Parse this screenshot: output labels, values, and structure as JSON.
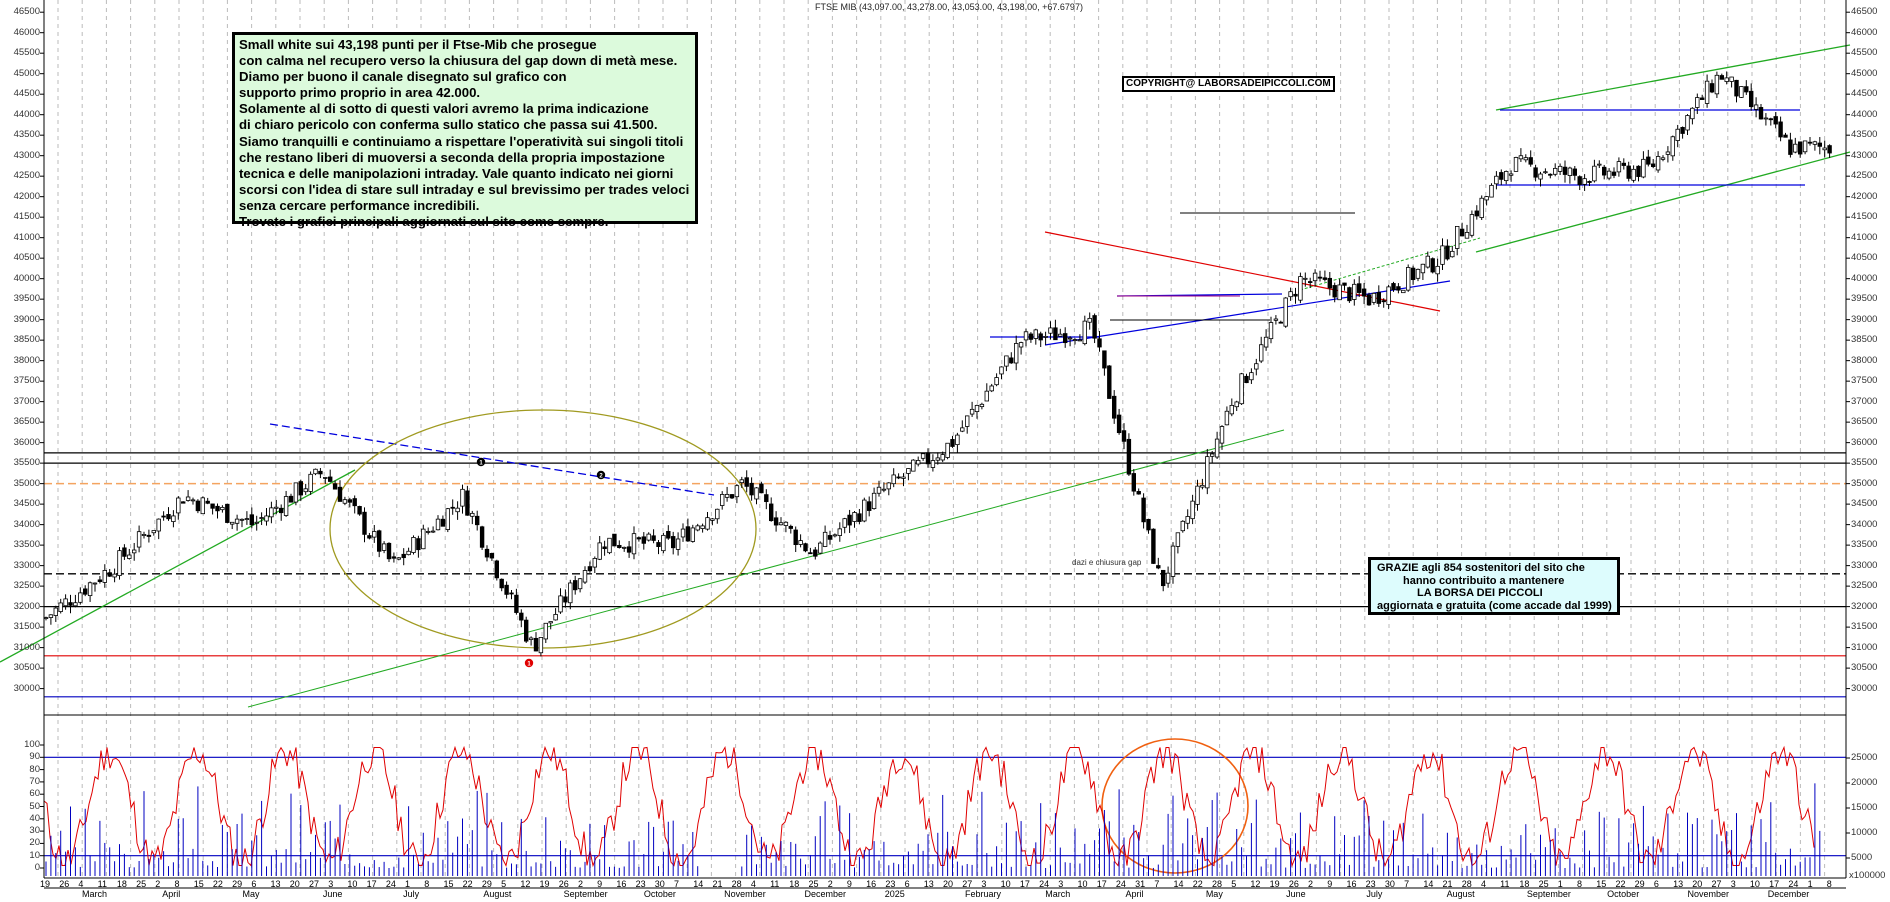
{
  "chart_data": {
    "type": "candlestick",
    "title": "FTSE MIB (43,097.00, 43,278.00, 43,053.00, 43,198.00, +67.6797)",
    "symbol": "FTSE MIB",
    "ohlc_last": {
      "open": 43097.0,
      "high": 43278.0,
      "low": 43053.0,
      "close": 43198.0,
      "change": 67.6797
    },
    "price_axis": {
      "ticks": [
        30000,
        30500,
        31000,
        31500,
        32000,
        32500,
        33000,
        33500,
        34000,
        34500,
        35000,
        35500,
        36000,
        36500,
        37000,
        37500,
        38000,
        38500,
        39000,
        39500,
        40000,
        40500,
        41000,
        41500,
        42000,
        42500,
        43000,
        43500,
        44000,
        44500,
        45000,
        45500,
        46000,
        46500
      ],
      "range": [
        29600,
        46700
      ]
    },
    "oscillator_axis": {
      "ticks": [
        0,
        10,
        20,
        30,
        40,
        50,
        60,
        70,
        80,
        90,
        100
      ],
      "levels": [
        10,
        90
      ]
    },
    "volume_axis": {
      "ticks": [
        5000,
        10000,
        15000,
        20000,
        25000
      ],
      "unit": "x100000"
    },
    "x_axis": {
      "day_ticks": [
        "19",
        "26",
        "4",
        "11",
        "18",
        "25",
        "2",
        "8",
        "15",
        "22",
        "29",
        "6",
        "13",
        "20",
        "27",
        "3",
        "10",
        "17",
        "24",
        "1",
        "8",
        "15",
        "22",
        "29",
        "5",
        "12",
        "19",
        "26",
        "2",
        "9",
        "16",
        "23",
        "30",
        "7",
        "14",
        "21",
        "28",
        "4",
        "11",
        "18",
        "25",
        "2",
        "9",
        "16",
        "23",
        "6",
        "13",
        "20",
        "27",
        "3",
        "10",
        "17",
        "24",
        "3",
        "10",
        "17",
        "24",
        "31",
        "7",
        "14",
        "22",
        "28",
        "5",
        "12",
        "19",
        "26",
        "2",
        "9",
        "16",
        "23",
        "30",
        "7",
        "14",
        "21",
        "28",
        "4",
        "11",
        "18",
        "25",
        "1",
        "8",
        "15",
        "22",
        "29",
        "6",
        "13",
        "20",
        "27",
        "3",
        "10",
        "17",
        "24",
        "1",
        "8"
      ],
      "months": [
        "March",
        "April",
        "May",
        "June",
        "July",
        "August",
        "September",
        "October",
        "November",
        "December",
        "2025",
        "February",
        "March",
        "April",
        "May",
        "June",
        "July",
        "August",
        "September",
        "October",
        "November",
        "December"
      ]
    },
    "price_series_approx": [
      {
        "date": "Feb 2024",
        "close": 31700
      },
      {
        "date": "early Mar 2024",
        "close": 33000
      },
      {
        "date": "late Mar 2024",
        "close": 34700
      },
      {
        "date": "Apr 2024",
        "close": 34000
      },
      {
        "date": "mid May 2024",
        "close": 35300
      },
      {
        "date": "Jun 2024",
        "close": 33000
      },
      {
        "date": "Jul 2024",
        "close": 34700
      },
      {
        "date": "early Aug 2024",
        "close": 31000
      },
      {
        "date": "late Aug 2024",
        "close": 33600
      },
      {
        "date": "Sep 2024",
        "close": 33500
      },
      {
        "date": "Oct 2024",
        "close": 35000
      },
      {
        "date": "Nov 2024",
        "close": 33300
      },
      {
        "date": "Dec 2024",
        "close": 34800
      },
      {
        "date": "Jan 2025",
        "close": 36000
      },
      {
        "date": "Feb 2025",
        "close": 38500
      },
      {
        "date": "Mar 2025",
        "close": 38800
      },
      {
        "date": "early Apr 2025",
        "close": 32500
      },
      {
        "date": "late Apr 2025",
        "close": 37000
      },
      {
        "date": "May 2025",
        "close": 40000
      },
      {
        "date": "Jun 2025",
        "close": 39500
      },
      {
        "date": "Jul 2025",
        "close": 40500
      },
      {
        "date": "Aug 2025",
        "close": 42800
      },
      {
        "date": "Sep 2025",
        "close": 42500
      },
      {
        "date": "Oct 2025",
        "close": 42700
      },
      {
        "date": "mid Nov 2025",
        "close": 45000
      },
      {
        "date": "late Nov 2025",
        "close": 43198
      }
    ],
    "horizontal_levels": [
      {
        "value": 35750,
        "color": "#000000"
      },
      {
        "value": 35500,
        "color": "#000000"
      },
      {
        "value": 35000,
        "color": "#f4a460",
        "style": "dashed"
      },
      {
        "value": 32800,
        "color": "#000000",
        "style": "dashed"
      },
      {
        "value": 32000,
        "color": "#000000"
      },
      {
        "value": 30800,
        "color": "#e00000"
      },
      {
        "value": 29800,
        "color": "#0000c0"
      }
    ],
    "annotations": [
      "1",
      "2",
      "1 (red)",
      "dazi e chiusura gap"
    ],
    "legend": []
  },
  "notes": {
    "main": [
      "Small white sui 43,198 punti per il Ftse-Mib che prosegue",
      "con calma nel recupero verso la chiusura del gap down di metà mese.",
      "Diamo per buono il canale disegnato sul grafico con",
      "supporto primo proprio in area 42.000.",
      "Solamente al di sotto di questi valori avremo la prima indicazione",
      "di chiaro pericolo con conferma sullo statico che passa sui 41.500.",
      "Siamo tranquilli e continuiamo a rispettare l'operatività sui singoli titoli",
      "che restano liberi di muoversi a seconda della propria impostazione",
      "tecnica e delle manipolazioni intraday. Vale quanto indicato nei giorni",
      "scorsi con l'idea di stare sull intraday e sul brevissimo per trades veloci",
      "senza cercare performance incredibili.",
      "Trovate i grafici principali aggiornati sul sito come sempre."
    ],
    "grazie": [
      "GRAZIE agli 854  sostenitori del sito che",
      "hanno contribuito a mantenere",
      "LA BORSA DEI PICCOLI",
      "aggiornata e gratuita (come accade dal 1999)"
    ],
    "copyright": "COPYRIGHT@ LABORSADEIPICCOLI.COM",
    "dazi_label": "dazi e chiusura gap"
  },
  "colors": {
    "candle": "#000000",
    "grid": "#bbbbbb",
    "oscillator": "#e00000",
    "volume": "#0000c0",
    "trend_green": "#22aa22",
    "trend_red": "#e00000",
    "trend_blue": "#0000dd",
    "ellipse_olive": "#a09a20",
    "ellipse_orange": "#f06010",
    "note_bg": "#dcfadc",
    "grazie_bg": "#ddfcfd"
  }
}
